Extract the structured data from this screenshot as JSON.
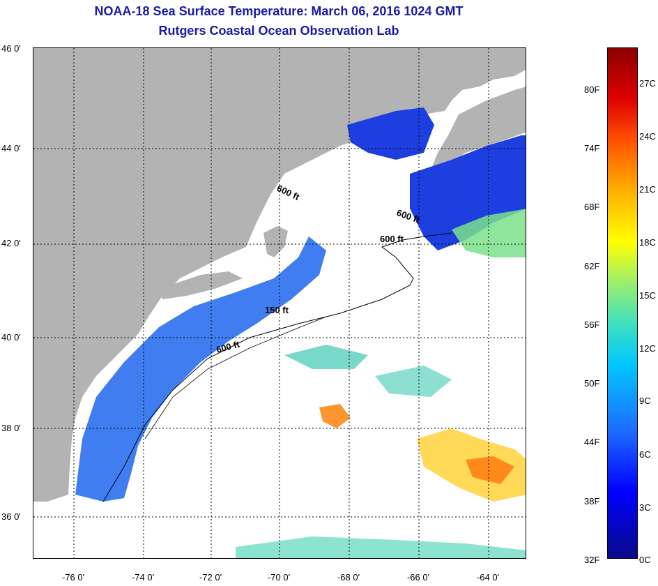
{
  "title": {
    "line1": "NOAA-18 Sea Surface Temperature:  March 06, 2016 1024 GMT",
    "line2": "Rutgers Coastal Ocean Observation Lab"
  },
  "map": {
    "lat_labels": [
      "46 0'",
      "44 0'",
      "42 0'",
      "40 0'",
      "38 0'",
      "36 0'"
    ],
    "lon_labels": [
      "-76 0'",
      "-74 0'",
      "-72 0'",
      "-70 0'",
      "-68 0'",
      "-66 0'",
      "-64 0'"
    ],
    "contour_labels": [
      "600 ft",
      "600 ft",
      "600 ft",
      "150 ft",
      "600 ft"
    ],
    "colors": {
      "land": "#b3b3b3",
      "cloud_free_water_cold": "#1e3fe0",
      "coastal_water": "#2a6ff0",
      "warm_patch": "#ff8a1a",
      "mid_patch": "#7be08a"
    }
  },
  "colorbar": {
    "fahrenheit": [
      "80F",
      "74F",
      "68F",
      "62F",
      "56F",
      "50F",
      "44F",
      "38F",
      "32F"
    ],
    "celsius": [
      "27C",
      "24C",
      "21C",
      "18C",
      "15C",
      "12C",
      "9C",
      "6C",
      "3C",
      "0C"
    ]
  }
}
